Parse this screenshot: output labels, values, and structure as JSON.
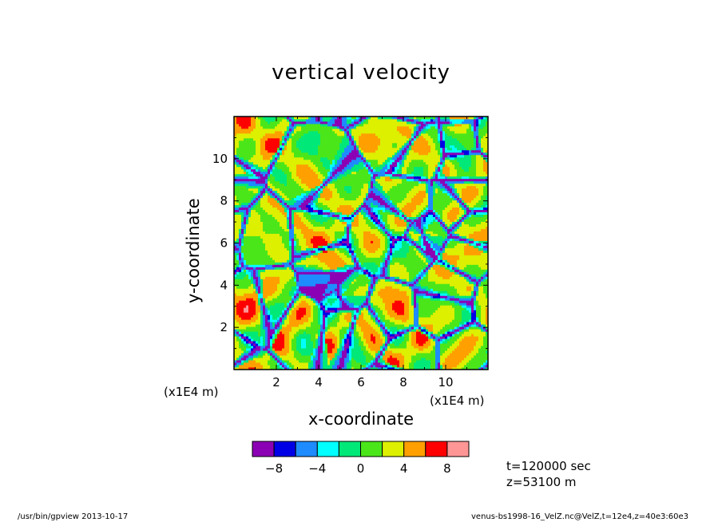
{
  "chart_data": {
    "type": "heatmap",
    "title": "vertical velocity",
    "xlabel": "x-coordinate",
    "ylabel": "y-coordinate",
    "x_unit": "(x1E4 m)",
    "y_unit": "(x1E4 m)",
    "xlim": [
      0,
      12
    ],
    "ylim": [
      0,
      12
    ],
    "x_ticks": [
      2,
      4,
      6,
      8,
      10
    ],
    "y_ticks": [
      2,
      4,
      6,
      8,
      10
    ],
    "colorbar": {
      "levels": [
        -10,
        -8,
        -6,
        -4,
        -2,
        0,
        2,
        4,
        6,
        8,
        10
      ],
      "tick_labels": [
        "-8",
        "-4",
        "0",
        "4",
        "8"
      ],
      "tick_values": [
        -8,
        -4,
        0,
        4,
        8
      ],
      "colors": [
        "#8b00b4",
        "#0000e6",
        "#1e8cff",
        "#00ffff",
        "#00e878",
        "#4be61a",
        "#dcf000",
        "#ffa000",
        "#ff0000",
        "#ff9696"
      ]
    }
  },
  "annotations": {
    "time": "t=120000 sec",
    "level": "z=53100 m"
  },
  "footer": {
    "left": "/usr/bin/gpview   2013-10-17",
    "right": "venus-bs1998-16_VelZ.nc@VelZ,t=12e4,z=40e3:60e3"
  }
}
